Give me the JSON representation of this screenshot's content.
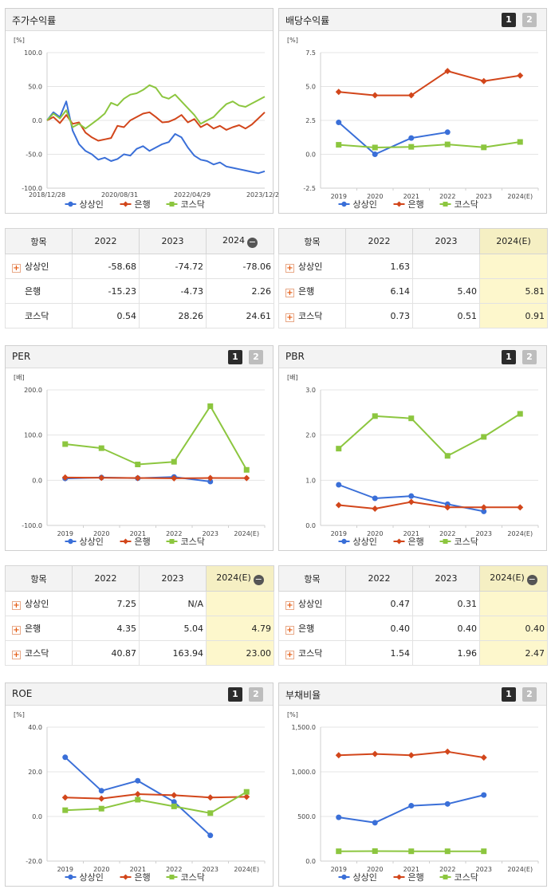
{
  "colors": {
    "series1": "#3a6fd8",
    "series2": "#d2461b",
    "series3": "#8cc63f"
  },
  "legend": [
    "상상인",
    "은행",
    "코스닥"
  ],
  "pager": [
    "1",
    "2"
  ],
  "minus_icon": "−",
  "plus_icon": "+",
  "charts": {
    "stock": {
      "title": "주가수익률",
      "chart_data": {
        "type": "line",
        "unit": "[%]",
        "ylim": [
          -100,
          100
        ],
        "yticks": [
          "100.0",
          "50.0",
          "0.0",
          "-50.0",
          "-100.0"
        ],
        "xtick_labels": [
          "2018/12/28",
          "2020/08/31",
          "2022/04/29",
          "2023/12/28"
        ],
        "x": [
          0,
          3,
          6,
          9,
          12,
          15,
          18,
          21,
          24,
          27,
          30,
          33,
          36,
          39,
          42,
          45,
          48,
          51,
          54,
          57,
          60,
          63,
          66,
          69,
          72,
          75,
          78,
          81,
          84,
          87,
          90,
          93,
          96,
          99,
          102
        ],
        "series": [
          {
            "name": "상상인",
            "values": [
              0,
              12,
              5,
              28,
              -15,
              -35,
              -45,
              -50,
              -58,
              -55,
              -60,
              -57,
              -50,
              -52,
              -42,
              -38,
              -45,
              -40,
              -35,
              -32,
              -20,
              -25,
              -40,
              -52,
              -58,
              -60,
              -65,
              -62,
              -68,
              -70,
              -72,
              -74,
              -76,
              -78,
              -75
            ]
          },
          {
            "name": "은행",
            "values": [
              0,
              5,
              -4,
              8,
              -5,
              -3,
              -18,
              -25,
              -30,
              -28,
              -26,
              -8,
              -10,
              0,
              5,
              10,
              12,
              5,
              -3,
              -2,
              2,
              8,
              -3,
              2,
              -10,
              -5,
              -12,
              -8,
              -14,
              -10,
              -7,
              -12,
              -6,
              3,
              12
            ]
          },
          {
            "name": "코스닥",
            "values": [
              0,
              10,
              3,
              15,
              -10,
              -5,
              -12,
              -5,
              2,
              10,
              26,
              22,
              32,
              38,
              40,
              45,
              52,
              48,
              35,
              32,
              38,
              28,
              18,
              8,
              -5,
              0,
              5,
              15,
              24,
              28,
              22,
              20,
              25,
              30,
              35
            ]
          }
        ]
      }
    },
    "dividend": {
      "title": "배당수익률",
      "chart_data": {
        "type": "line",
        "unit": "[%]",
        "ylim": [
          -2.5,
          7.5
        ],
        "yticks": [
          "7.5",
          "5.0",
          "2.5",
          "0.0",
          "-2.5"
        ],
        "categories": [
          "2019",
          "2020",
          "2021",
          "2022",
          "2023",
          "2024(E)"
        ],
        "series": [
          {
            "name": "상상인",
            "values": [
              2.35,
              0.0,
              1.2,
              1.63,
              null,
              null
            ]
          },
          {
            "name": "은행",
            "values": [
              4.6,
              4.35,
              4.35,
              6.14,
              5.4,
              5.81
            ]
          },
          {
            "name": "코스닥",
            "values": [
              0.7,
              0.5,
              0.55,
              0.73,
              0.51,
              0.91
            ]
          }
        ]
      }
    },
    "per": {
      "title": "PER",
      "chart_data": {
        "type": "line",
        "unit": "[배]",
        "ylim": [
          -100,
          200
        ],
        "yticks": [
          "200.0",
          "100.0",
          "0.0",
          "-100.0"
        ],
        "categories": [
          "2019",
          "2020",
          "2021",
          "2022",
          "2023",
          "2024(E)"
        ],
        "series": [
          {
            "name": "상상인",
            "values": [
              4.0,
              6.0,
              4.5,
              7.25,
              -3.0,
              null
            ]
          },
          {
            "name": "은행",
            "values": [
              6.0,
              5.5,
              5.0,
              4.35,
              5.04,
              4.79
            ]
          },
          {
            "name": "코스닥",
            "values": [
              80,
              71,
              35,
              40.87,
              163.94,
              23.0
            ]
          }
        ]
      }
    },
    "pbr": {
      "title": "PBR",
      "chart_data": {
        "type": "line",
        "unit": "[배]",
        "ylim": [
          0,
          3
        ],
        "yticks": [
          "3.0",
          "2.0",
          "1.0",
          "0.0"
        ],
        "categories": [
          "2019",
          "2020",
          "2021",
          "2022",
          "2023",
          "2024(E)"
        ],
        "series": [
          {
            "name": "상상인",
            "values": [
              0.9,
              0.6,
              0.65,
              0.47,
              0.31,
              null
            ]
          },
          {
            "name": "은행",
            "values": [
              0.45,
              0.37,
              0.52,
              0.4,
              0.4,
              0.4
            ]
          },
          {
            "name": "코스닥",
            "values": [
              1.7,
              2.42,
              2.37,
              1.54,
              1.96,
              2.47
            ]
          }
        ]
      }
    },
    "roe": {
      "title": "ROE",
      "chart_data": {
        "type": "line",
        "unit": "[%]",
        "ylim": [
          -20,
          40
        ],
        "yticks": [
          "40.0",
          "20.0",
          "0.0",
          "-20.0"
        ],
        "categories": [
          "2019",
          "2020",
          "2021",
          "2022",
          "2023",
          "2024(E)"
        ],
        "series": [
          {
            "name": "상상인",
            "values": [
              26.5,
              11.5,
              16.0,
              6.5,
              -8.5,
              null
            ]
          },
          {
            "name": "은행",
            "values": [
              8.5,
              8.0,
              10.0,
              9.5,
              8.5,
              8.8
            ]
          },
          {
            "name": "코스닥",
            "values": [
              2.8,
              3.5,
              7.5,
              4.5,
              1.5,
              11.0
            ]
          }
        ]
      }
    },
    "debt": {
      "title": "부채비율",
      "chart_data": {
        "type": "line",
        "unit": "[%]",
        "ylim": [
          0,
          1500
        ],
        "yticks": [
          "1,500.0",
          "1,000.0",
          "500.0",
          "0.0"
        ],
        "categories": [
          "2019",
          "2020",
          "2021",
          "2022",
          "2023",
          "2024(E)"
        ],
        "series": [
          {
            "name": "상상인",
            "values": [
              490,
              430,
              620,
              640,
              740,
              null
            ]
          },
          {
            "name": "은행",
            "values": [
              1185,
              1200,
              1185,
              1225,
              1160,
              null
            ]
          },
          {
            "name": "코스닥",
            "values": [
              110,
              112,
              110,
              110,
              110,
              null
            ]
          }
        ]
      }
    }
  },
  "tables": {
    "stock": {
      "header": [
        "항목",
        "2022",
        "2023",
        "2024"
      ],
      "rows": [
        {
          "name": "상상인",
          "plus": true,
          "cells": [
            "-58.68",
            "-74.72",
            "-78.06"
          ]
        },
        {
          "name": "은행",
          "plus": false,
          "cells": [
            "-15.23",
            "-4.73",
            "2.26"
          ]
        },
        {
          "name": "코스닥",
          "plus": false,
          "cells": [
            "0.54",
            "28.26",
            "24.61"
          ]
        }
      ]
    },
    "dividend": {
      "header": [
        "항목",
        "2022",
        "2023",
        "2024(E)"
      ],
      "rows": [
        {
          "name": "상상인",
          "plus": true,
          "cells": [
            "1.63",
            "",
            ""
          ]
        },
        {
          "name": "은행",
          "plus": true,
          "cells": [
            "6.14",
            "5.40",
            "5.81"
          ]
        },
        {
          "name": "코스닥",
          "plus": true,
          "cells": [
            "0.73",
            "0.51",
            "0.91"
          ]
        }
      ]
    },
    "per": {
      "header": [
        "항목",
        "2022",
        "2023",
        "2024(E)"
      ],
      "rows": [
        {
          "name": "상상인",
          "plus": true,
          "cells": [
            "7.25",
            "N/A",
            ""
          ]
        },
        {
          "name": "은행",
          "plus": true,
          "cells": [
            "4.35",
            "5.04",
            "4.79"
          ]
        },
        {
          "name": "코스닥",
          "plus": true,
          "cells": [
            "40.87",
            "163.94",
            "23.00"
          ]
        }
      ]
    },
    "pbr": {
      "header": [
        "항목",
        "2022",
        "2023",
        "2024(E)"
      ],
      "rows": [
        {
          "name": "상상인",
          "plus": true,
          "cells": [
            "0.47",
            "0.31",
            ""
          ]
        },
        {
          "name": "은행",
          "plus": true,
          "cells": [
            "0.40",
            "0.40",
            "0.40"
          ]
        },
        {
          "name": "코스닥",
          "plus": true,
          "cells": [
            "1.54",
            "1.96",
            "2.47"
          ]
        }
      ]
    }
  }
}
